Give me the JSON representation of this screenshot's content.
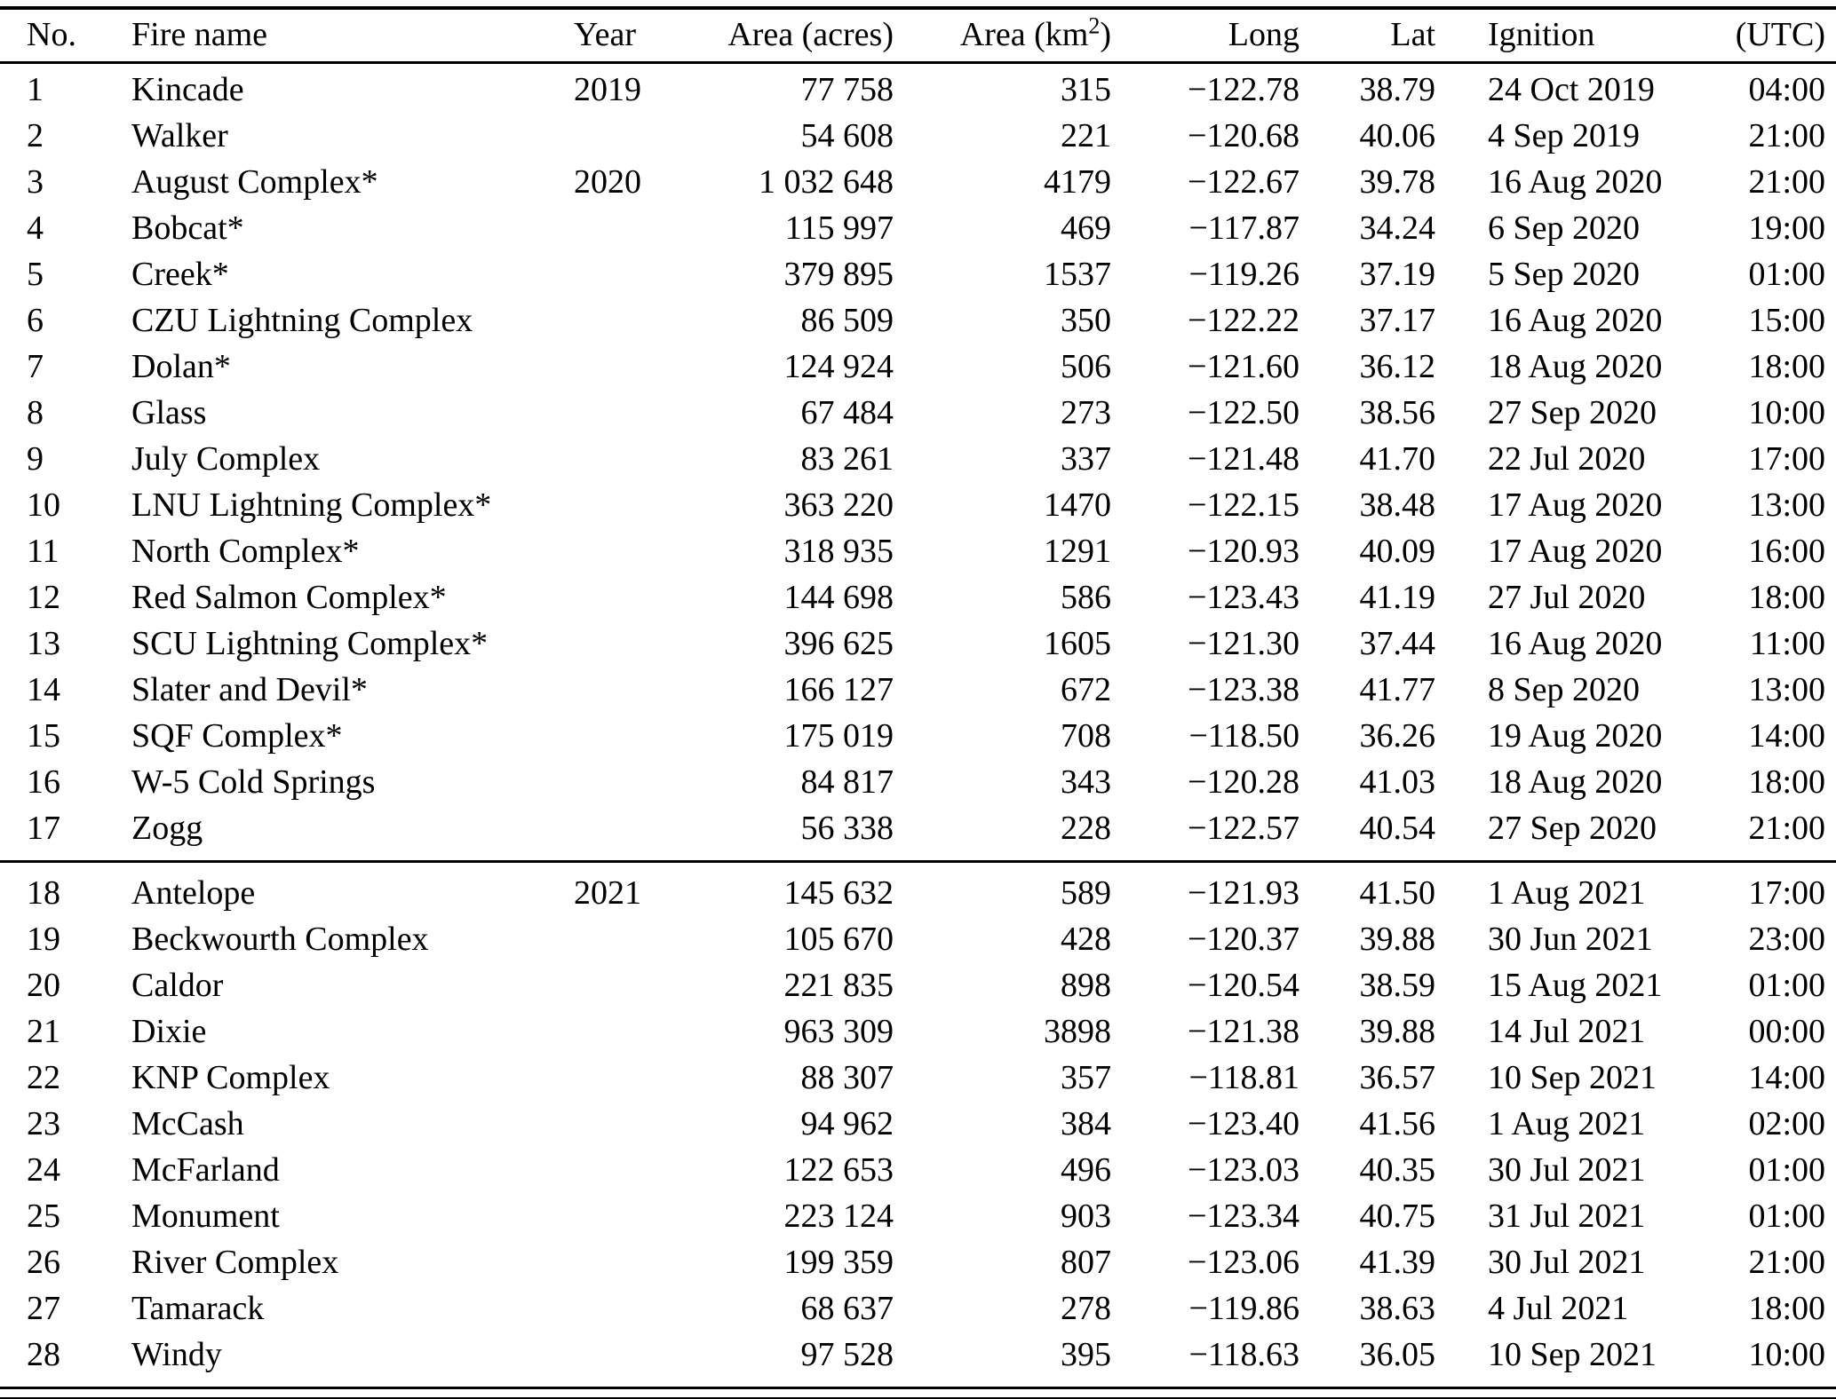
{
  "page": {
    "background": "#ffffff",
    "text_color": "#000000",
    "rule_color": "#000000"
  },
  "table": {
    "columns": [
      {
        "key": "no",
        "label": "No.",
        "align": "left"
      },
      {
        "key": "fire-name",
        "label": "Fire name",
        "align": "left"
      },
      {
        "key": "year",
        "label": "Year",
        "align": "left"
      },
      {
        "key": "area-acres",
        "label": "Area (acres)",
        "align": "right"
      },
      {
        "key": "area-km2",
        "label": "Area (km²)",
        "align": "right"
      },
      {
        "key": "long",
        "label": "Long",
        "align": "right"
      },
      {
        "key": "lat",
        "label": "Lat",
        "align": "right"
      },
      {
        "key": "ignition",
        "label": "Ignition",
        "align": "left"
      },
      {
        "key": "utc",
        "label": "(UTC)",
        "align": "right"
      }
    ],
    "sections": [
      {
        "rows": [
          [
            "1",
            "Kincade",
            "2019",
            "77 758",
            "315",
            "−122.78",
            "38.79",
            "24 Oct 2019",
            "04:00"
          ],
          [
            "2",
            "Walker",
            "",
            "54 608",
            "221",
            "−120.68",
            "40.06",
            "4 Sep 2019",
            "21:00"
          ],
          [
            "3",
            "August Complex*",
            "2020",
            "1 032 648",
            "4179",
            "−122.67",
            "39.78",
            "16 Aug 2020",
            "21:00"
          ],
          [
            "4",
            "Bobcat*",
            "",
            "115 997",
            "469",
            "−117.87",
            "34.24",
            "6 Sep 2020",
            "19:00"
          ],
          [
            "5",
            "Creek*",
            "",
            "379 895",
            "1537",
            "−119.26",
            "37.19",
            "5 Sep 2020",
            "01:00"
          ],
          [
            "6",
            "CZU Lightning Complex",
            "",
            "86 509",
            "350",
            "−122.22",
            "37.17",
            "16 Aug 2020",
            "15:00"
          ],
          [
            "7",
            "Dolan*",
            "",
            "124 924",
            "506",
            "−121.60",
            "36.12",
            "18 Aug 2020",
            "18:00"
          ],
          [
            "8",
            "Glass",
            "",
            "67 484",
            "273",
            "−122.50",
            "38.56",
            "27 Sep 2020",
            "10:00"
          ],
          [
            "9",
            "July Complex",
            "",
            "83 261",
            "337",
            "−121.48",
            "41.70",
            "22 Jul 2020",
            "17:00"
          ],
          [
            "10",
            "LNU Lightning Complex*",
            "",
            "363 220",
            "1470",
            "−122.15",
            "38.48",
            "17 Aug 2020",
            "13:00"
          ],
          [
            "11",
            "North Complex*",
            "",
            "318 935",
            "1291",
            "−120.93",
            "40.09",
            "17 Aug 2020",
            "16:00"
          ],
          [
            "12",
            "Red Salmon Complex*",
            "",
            "144 698",
            "586",
            "−123.43",
            "41.19",
            "27 Jul 2020",
            "18:00"
          ],
          [
            "13",
            "SCU Lightning Complex*",
            "",
            "396 625",
            "1605",
            "−121.30",
            "37.44",
            "16 Aug 2020",
            "11:00"
          ],
          [
            "14",
            "Slater and Devil*",
            "",
            "166 127",
            "672",
            "−123.38",
            "41.77",
            "8 Sep 2020",
            "13:00"
          ],
          [
            "15",
            "SQF Complex*",
            "",
            "175 019",
            "708",
            "−118.50",
            "36.26",
            "19 Aug 2020",
            "14:00"
          ],
          [
            "16",
            "W-5 Cold Springs",
            "",
            "84 817",
            "343",
            "−120.28",
            "41.03",
            "18 Aug 2020",
            "18:00"
          ],
          [
            "17",
            "Zogg",
            "",
            "56 338",
            "228",
            "−122.57",
            "40.54",
            "27 Sep 2020",
            "21:00"
          ]
        ]
      },
      {
        "rows": [
          [
            "18",
            "Antelope",
            "2021",
            "145 632",
            "589",
            "−121.93",
            "41.50",
            "1 Aug 2021",
            "17:00"
          ],
          [
            "19",
            "Beckwourth Complex",
            "",
            "105 670",
            "428",
            "−120.37",
            "39.88",
            "30 Jun 2021",
            "23:00"
          ],
          [
            "20",
            "Caldor",
            "",
            "221 835",
            "898",
            "−120.54",
            "38.59",
            "15 Aug 2021",
            "01:00"
          ],
          [
            "21",
            "Dixie",
            "",
            "963 309",
            "3898",
            "−121.38",
            "39.88",
            "14 Jul 2021",
            "00:00"
          ],
          [
            "22",
            "KNP Complex",
            "",
            "88 307",
            "357",
            "−118.81",
            "36.57",
            "10 Sep 2021",
            "14:00"
          ],
          [
            "23",
            "McCash",
            "",
            "94 962",
            "384",
            "−123.40",
            "41.56",
            "1 Aug 2021",
            "02:00"
          ],
          [
            "24",
            "McFarland",
            "",
            "122 653",
            "496",
            "−123.03",
            "40.35",
            "30 Jul 2021",
            "01:00"
          ],
          [
            "25",
            "Monument",
            "",
            "223 124",
            "903",
            "−123.34",
            "40.75",
            "31 Jul 2021",
            "01:00"
          ],
          [
            "26",
            "River Complex",
            "",
            "199 359",
            "807",
            "−123.06",
            "41.39",
            "30 Jul 2021",
            "21:00"
          ],
          [
            "27",
            "Tamarack",
            "",
            "68 637",
            "278",
            "−119.86",
            "38.63",
            "4 Jul 2021",
            "18:00"
          ],
          [
            "28",
            "Windy",
            "",
            "97 528",
            "395",
            "−118.63",
            "36.05",
            "10 Sep 2021",
            "10:00"
          ]
        ]
      }
    ]
  }
}
